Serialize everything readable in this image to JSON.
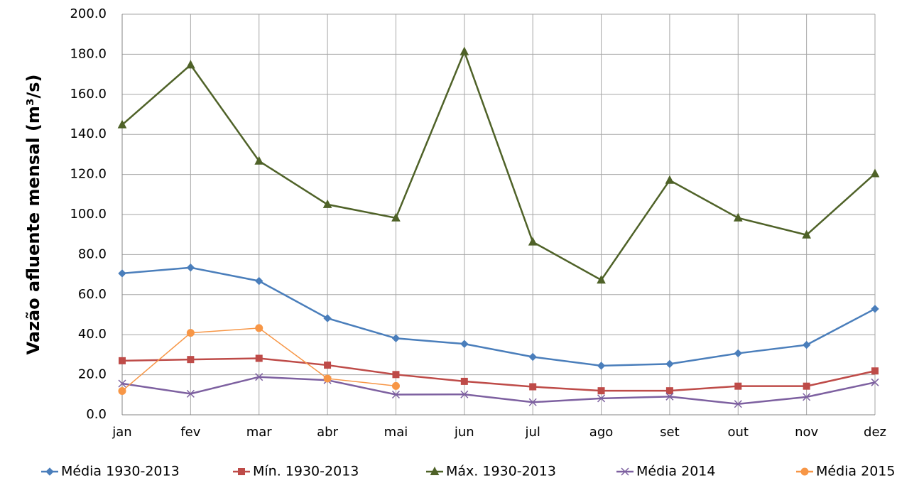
{
  "chart_data": {
    "type": "line",
    "y_label": "Vazão afluente mensal (m³/s)",
    "categories": [
      "jan",
      "fev",
      "mar",
      "abr",
      "mai",
      "jun",
      "jul",
      "ago",
      "set",
      "out",
      "nov",
      "dez"
    ],
    "series": [
      {
        "name": "Média 1930-2013",
        "color": "#4a7ebb",
        "marker": "diamond",
        "values": [
          70.6,
          73.5,
          66.8,
          48.2,
          38.2,
          35.4,
          28.9,
          24.5,
          25.4,
          30.7,
          34.9,
          52.9
        ]
      },
      {
        "name": "Mín. 1930-2013",
        "color": "#be4b48",
        "marker": "square",
        "values": [
          27.0,
          27.6,
          28.2,
          24.8,
          20.1,
          16.7,
          14.0,
          12.0,
          12.0,
          14.3,
          14.3,
          21.9
        ]
      },
      {
        "name": "Máx. 1930-2013",
        "color": "#4f6228",
        "marker": "triangle",
        "values": [
          144.8,
          174.7,
          126.7,
          105.0,
          98.3,
          181.3,
          86.3,
          67.3,
          117.1,
          98.3,
          89.8,
          120.4
        ]
      },
      {
        "name": "Média 2014",
        "color": "#7d60a0",
        "marker": "x",
        "values": [
          15.6,
          10.5,
          18.9,
          17.3,
          10.1,
          10.2,
          6.3,
          8.2,
          9.1,
          5.4,
          8.9,
          16.2
        ]
      },
      {
        "name": "Média 2015",
        "color": "#f79646",
        "marker": "circle",
        "values": [
          11.9,
          40.9,
          43.3,
          18.1,
          14.4,
          null,
          null,
          null,
          null,
          null,
          null,
          null
        ]
      }
    ],
    "ylim": [
      0,
      200
    ],
    "yticks": [
      {
        "value": 0,
        "label": "0.0"
      },
      {
        "value": 20,
        "label": "20.0"
      },
      {
        "value": 40,
        "label": "40.0"
      },
      {
        "value": 60,
        "label": "60.0"
      },
      {
        "value": 80,
        "label": "80.0"
      },
      {
        "value": 100,
        "label": "100.0"
      },
      {
        "value": 120,
        "label": "120.0"
      },
      {
        "value": 140,
        "label": "140.0"
      },
      {
        "value": 160,
        "label": "160.0"
      },
      {
        "value": 180,
        "label": "180.0"
      },
      {
        "value": 200,
        "label": "200.0"
      }
    ],
    "grid": true,
    "legend": "bottom"
  }
}
